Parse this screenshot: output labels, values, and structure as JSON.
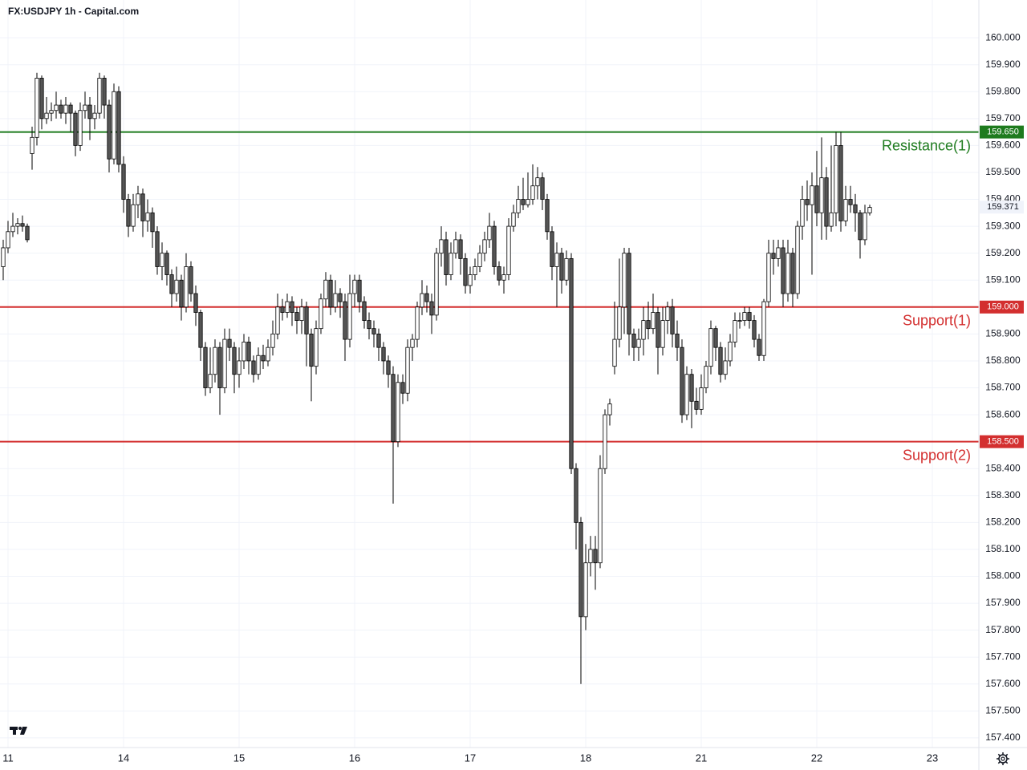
{
  "chart_data": {
    "type": "candlestick",
    "title": "FX:USDJPY 1h - Capital.com",
    "up_color": "#ffffff",
    "down_color": "#555555",
    "wick_color": "#000000",
    "grid": true,
    "last_price": 159.371,
    "xlim": [
      -1.667,
      201.667
    ],
    "xticks": [
      {
        "value": 0,
        "label": "11"
      },
      {
        "value": 24,
        "label": "14"
      },
      {
        "value": 48,
        "label": "15"
      },
      {
        "value": 72,
        "label": "16"
      },
      {
        "value": 96,
        "label": "17"
      },
      {
        "value": 120,
        "label": "18"
      },
      {
        "value": 144,
        "label": "21"
      },
      {
        "value": 168,
        "label": "22"
      },
      {
        "value": 192,
        "label": "23"
      }
    ],
    "ylim": [
      157.364,
      160.051
    ],
    "yticks": [
      {
        "value": 157.4,
        "label": "157.400"
      },
      {
        "value": 157.5,
        "label": "157.500"
      },
      {
        "value": 157.6,
        "label": "157.600"
      },
      {
        "value": 157.7,
        "label": "157.700"
      },
      {
        "value": 157.8,
        "label": "157.800"
      },
      {
        "value": 157.9,
        "label": "157.900"
      },
      {
        "value": 158.0,
        "label": "158.000"
      },
      {
        "value": 158.1,
        "label": "158.100"
      },
      {
        "value": 158.2,
        "label": "158.200"
      },
      {
        "value": 158.3,
        "label": "158.300"
      },
      {
        "value": 158.4,
        "label": "158.400"
      },
      {
        "value": 158.5,
        "label": "158.500"
      },
      {
        "value": 158.6,
        "label": "158.600"
      },
      {
        "value": 158.7,
        "label": "158.700"
      },
      {
        "value": 158.8,
        "label": "158.800"
      },
      {
        "value": 158.9,
        "label": "158.900"
      },
      {
        "value": 159.0,
        "label": "159.000"
      },
      {
        "value": 159.1,
        "label": "159.100"
      },
      {
        "value": 159.2,
        "label": "159.200"
      },
      {
        "value": 159.3,
        "label": "159.300"
      },
      {
        "value": 159.4,
        "label": "159.400"
      },
      {
        "value": 159.5,
        "label": "159.500"
      },
      {
        "value": 159.6,
        "label": "159.600"
      },
      {
        "value": 159.7,
        "label": "159.700"
      },
      {
        "value": 159.8,
        "label": "159.800"
      },
      {
        "value": 159.9,
        "label": "159.900"
      },
      {
        "value": 160.0,
        "label": "160.000"
      }
    ],
    "levels": [
      {
        "value": 159.65,
        "price_label": "159.650",
        "label": "Resistance(1)",
        "color": "#1e7b1e"
      },
      {
        "value": 159.0,
        "price_label": "159.000",
        "label": "Support(1)",
        "color": "#d32f2f"
      },
      {
        "value": 158.5,
        "price_label": "158.500",
        "label": "Support(2)",
        "color": "#d32f2f"
      }
    ],
    "x": [
      -1,
      0,
      1,
      2,
      3,
      4,
      5,
      6,
      7,
      8,
      9,
      10,
      11,
      12,
      13,
      14,
      15,
      16,
      17,
      18,
      19,
      20,
      21,
      22,
      23,
      24,
      25,
      26,
      27,
      28,
      29,
      30,
      31,
      32,
      33,
      34,
      35,
      36,
      37,
      38,
      39,
      40,
      41,
      42,
      43,
      44,
      45,
      46,
      47,
      48,
      49,
      50,
      51,
      52,
      53,
      54,
      55,
      56,
      57,
      58,
      59,
      60,
      61,
      62,
      63,
      64,
      65,
      66,
      67,
      68,
      69,
      70,
      71,
      72,
      73,
      74,
      75,
      76,
      77,
      78,
      79,
      80,
      81,
      82,
      83,
      84,
      85,
      86,
      87,
      88,
      89,
      90,
      91,
      92,
      93,
      94,
      95,
      96,
      97,
      98,
      99,
      100,
      101,
      102,
      103,
      104,
      105,
      106,
      107,
      108,
      109,
      110,
      111,
      112,
      113,
      114,
      115,
      116,
      117,
      118,
      119,
      120,
      121,
      122,
      123,
      124,
      125,
      126,
      127,
      128,
      129,
      130,
      131,
      132,
      133,
      134,
      135,
      136,
      137,
      138,
      139,
      140,
      141,
      142,
      143,
      144,
      145,
      146,
      147,
      148,
      149,
      150,
      151,
      152,
      153,
      154,
      155,
      156,
      157,
      158,
      159,
      160,
      161,
      162,
      163,
      164,
      165,
      166,
      167,
      168,
      169,
      170,
      171,
      172,
      173,
      174,
      175,
      176,
      177,
      178,
      179
    ],
    "open": [
      159.15,
      159.22,
      159.28,
      159.3,
      159.31,
      159.3,
      159.57,
      159.63,
      159.85,
      159.7,
      159.72,
      159.73,
      159.75,
      159.72,
      159.75,
      159.72,
      159.6,
      159.73,
      159.75,
      159.7,
      159.72,
      159.85,
      159.75,
      159.55,
      159.8,
      159.53,
      159.4,
      159.3,
      159.38,
      159.42,
      159.32,
      159.35,
      159.28,
      159.15,
      159.2,
      159.12,
      159.05,
      159.1,
      159.0,
      159.15,
      159.05,
      158.98,
      158.85,
      158.7,
      158.75,
      158.85,
      158.7,
      158.88,
      158.85,
      158.75,
      158.8,
      158.87,
      158.8,
      158.75,
      158.82,
      158.8,
      158.85,
      158.9,
      159.0,
      158.98,
      159.02,
      158.98,
      158.95,
      159.0,
      158.9,
      158.78,
      158.92,
      159.03,
      159.1,
      159.0,
      159.05,
      159.02,
      158.88,
      159.05,
      159.1,
      159.02,
      158.95,
      158.92,
      158.9,
      158.85,
      158.8,
      158.75,
      158.5,
      158.72,
      158.68,
      158.85,
      158.88,
      159.0,
      159.05,
      159.02,
      158.97,
      159.2,
      159.25,
      159.12,
      159.2,
      159.25,
      159.18,
      159.08,
      159.12,
      159.15,
      159.2,
      159.25,
      159.3,
      159.15,
      159.1,
      159.12,
      159.3,
      159.35,
      159.4,
      159.38,
      159.4,
      159.45,
      159.48,
      159.4,
      159.28,
      159.15,
      159.2,
      159.1,
      159.18,
      158.4,
      158.2,
      157.85,
      158.05,
      158.1,
      158.05,
      158.4,
      158.6,
      158.78,
      158.88,
      159.0,
      159.2,
      158.9,
      158.85,
      158.88,
      158.95,
      158.92,
      158.98,
      158.85,
      158.95,
      159.0,
      158.9,
      158.85,
      158.6,
      158.75,
      158.65,
      158.62,
      158.7,
      158.78,
      158.92,
      158.85,
      158.75,
      158.8,
      158.87,
      158.95,
      158.95,
      158.98,
      158.95,
      158.88,
      158.82,
      159.02,
      159.2,
      159.18,
      159.22,
      159.05,
      159.2,
      159.05,
      159.3,
      159.4,
      159.38,
      159.45,
      159.35,
      159.48,
      159.3,
      159.35,
      159.6,
      159.32,
      159.4,
      159.38,
      159.35,
      159.25,
      159.35
    ],
    "high": [
      159.25,
      159.32,
      159.35,
      159.33,
      159.34,
      159.31,
      159.67,
      159.87,
      159.86,
      159.78,
      159.76,
      159.8,
      159.77,
      159.78,
      159.76,
      159.73,
      159.76,
      159.8,
      159.78,
      159.75,
      159.87,
      159.86,
      159.77,
      159.83,
      159.82,
      159.56,
      159.42,
      159.42,
      159.45,
      159.44,
      159.4,
      159.37,
      159.3,
      159.24,
      159.21,
      159.14,
      159.15,
      159.12,
      159.2,
      159.17,
      159.08,
      158.99,
      158.87,
      158.85,
      158.88,
      158.87,
      158.92,
      158.92,
      158.87,
      158.85,
      158.9,
      158.89,
      158.82,
      158.85,
      158.86,
      158.88,
      158.95,
      159.05,
      159.03,
      159.05,
      159.04,
      159.0,
      159.03,
      159.02,
      158.92,
      158.95,
      159.05,
      159.13,
      159.12,
      159.1,
      159.07,
      159.05,
      159.12,
      159.12,
      159.12,
      159.04,
      158.98,
      158.95,
      158.92,
      158.87,
      158.82,
      158.78,
      158.75,
      158.75,
      158.88,
      158.9,
      159.02,
      159.1,
      159.08,
      159.05,
      159.22,
      159.3,
      159.28,
      159.24,
      159.28,
      159.27,
      159.2,
      159.15,
      159.18,
      159.23,
      159.28,
      159.35,
      159.32,
      159.17,
      159.15,
      159.33,
      159.38,
      159.45,
      159.48,
      159.5,
      159.53,
      159.52,
      159.5,
      159.42,
      159.3,
      159.24,
      159.22,
      159.21,
      159.2,
      158.42,
      158.22,
      158.12,
      158.15,
      158.15,
      158.45,
      158.62,
      158.66,
      159.02,
      159.18,
      159.22,
      159.22,
      158.92,
      158.92,
      159.0,
      159.02,
      159.05,
      159.0,
      159.0,
      159.02,
      159.03,
      158.95,
      158.88,
      158.78,
      158.77,
      158.7,
      158.75,
      158.8,
      158.95,
      158.93,
      158.87,
      158.85,
      158.9,
      158.98,
      158.98,
      159.0,
      159.0,
      158.97,
      158.9,
      159.03,
      159.25,
      159.25,
      159.25,
      159.25,
      159.25,
      159.22,
      159.32,
      159.45,
      159.47,
      159.5,
      159.58,
      159.63,
      159.52,
      159.6,
      159.65,
      159.65,
      159.45,
      159.45,
      159.42,
      159.36,
      159.38,
      159.38
    ],
    "low": [
      159.1,
      159.2,
      159.26,
      159.27,
      159.28,
      159.24,
      159.51,
      159.6,
      159.66,
      159.68,
      159.69,
      159.7,
      159.7,
      159.68,
      159.65,
      159.56,
      159.58,
      159.7,
      159.62,
      159.66,
      159.7,
      159.7,
      159.5,
      159.53,
      159.5,
      159.35,
      159.26,
      159.28,
      159.33,
      159.26,
      159.28,
      159.22,
      159.12,
      159.1,
      159.08,
      159.0,
      159.02,
      158.95,
      158.98,
      159.02,
      158.93,
      158.8,
      158.67,
      158.68,
      158.72,
      158.6,
      158.68,
      158.8,
      158.68,
      158.7,
      158.77,
      158.75,
      158.72,
      158.73,
      158.77,
      158.78,
      158.82,
      158.88,
      158.95,
      158.96,
      158.93,
      158.9,
      158.9,
      158.78,
      158.65,
      158.75,
      158.9,
      159.0,
      158.97,
      158.98,
      158.96,
      158.8,
      158.85,
      159.0,
      158.98,
      158.92,
      158.88,
      158.85,
      158.8,
      158.75,
      158.7,
      158.27,
      158.48,
      158.64,
      158.65,
      158.8,
      158.85,
      158.97,
      158.98,
      158.9,
      158.95,
      159.15,
      159.08,
      159.1,
      159.18,
      159.12,
      159.05,
      159.05,
      159.1,
      159.13,
      159.17,
      159.22,
      159.12,
      159.08,
      159.05,
      159.1,
      159.28,
      159.33,
      159.36,
      159.37,
      159.38,
      159.4,
      159.36,
      159.25,
      159.1,
      159.0,
      159.05,
      159.08,
      158.38,
      158.1,
      157.6,
      157.8,
      158.0,
      157.95,
      158.03,
      158.38,
      158.56,
      158.75,
      158.85,
      158.9,
      158.82,
      158.8,
      158.8,
      158.82,
      158.88,
      158.9,
      158.75,
      158.82,
      158.9,
      158.85,
      158.8,
      158.57,
      158.58,
      158.55,
      158.6,
      158.6,
      158.68,
      158.75,
      158.8,
      158.72,
      158.73,
      158.78,
      158.85,
      158.92,
      158.93,
      158.92,
      158.85,
      158.8,
      158.8,
      159.0,
      159.12,
      159.15,
      159.0,
      159.02,
      159.0,
      159.03,
      159.25,
      159.32,
      159.12,
      159.3,
      159.25,
      159.25,
      159.28,
      159.3,
      159.28,
      159.3,
      159.35,
      159.28,
      159.18,
      159.23,
      159.34
    ],
    "close": [
      159.22,
      159.28,
      159.3,
      159.31,
      159.3,
      159.25,
      159.63,
      159.85,
      159.7,
      159.72,
      159.73,
      159.75,
      159.72,
      159.75,
      159.72,
      159.6,
      159.73,
      159.75,
      159.7,
      159.72,
      159.85,
      159.75,
      159.55,
      159.8,
      159.53,
      159.4,
      159.3,
      159.38,
      159.42,
      159.32,
      159.35,
      159.28,
      159.15,
      159.2,
      159.12,
      159.05,
      159.1,
      159.0,
      159.15,
      159.05,
      158.98,
      158.85,
      158.7,
      158.75,
      158.85,
      158.7,
      158.88,
      158.85,
      158.75,
      158.8,
      158.87,
      158.8,
      158.75,
      158.82,
      158.8,
      158.85,
      158.9,
      159.0,
      158.98,
      159.02,
      158.98,
      158.95,
      159.0,
      158.9,
      158.78,
      158.92,
      159.03,
      159.1,
      159.0,
      159.05,
      159.02,
      158.88,
      159.05,
      159.1,
      159.02,
      158.95,
      158.92,
      158.9,
      158.85,
      158.8,
      158.75,
      158.5,
      158.72,
      158.68,
      158.85,
      158.88,
      159.0,
      159.05,
      159.02,
      158.97,
      159.2,
      159.25,
      159.12,
      159.2,
      159.25,
      159.18,
      159.08,
      159.12,
      159.15,
      159.2,
      159.25,
      159.3,
      159.15,
      159.1,
      159.12,
      159.3,
      159.35,
      159.4,
      159.38,
      159.4,
      159.45,
      159.48,
      159.4,
      159.28,
      159.15,
      159.2,
      159.1,
      159.18,
      158.4,
      158.2,
      157.85,
      158.05,
      158.1,
      158.05,
      158.4,
      158.6,
      158.64,
      158.88,
      159.0,
      159.2,
      158.9,
      158.85,
      158.88,
      158.95,
      158.92,
      158.98,
      158.85,
      158.95,
      159.0,
      158.9,
      158.85,
      158.6,
      158.75,
      158.65,
      158.62,
      158.7,
      158.78,
      158.92,
      158.85,
      158.75,
      158.8,
      158.87,
      158.95,
      158.95,
      158.98,
      158.95,
      158.88,
      158.82,
      159.02,
      159.2,
      159.18,
      159.22,
      159.05,
      159.2,
      159.05,
      159.3,
      159.4,
      159.38,
      159.45,
      159.35,
      159.48,
      159.3,
      159.35,
      159.6,
      159.32,
      159.4,
      159.38,
      159.35,
      159.25,
      159.35,
      159.37
    ]
  }
}
